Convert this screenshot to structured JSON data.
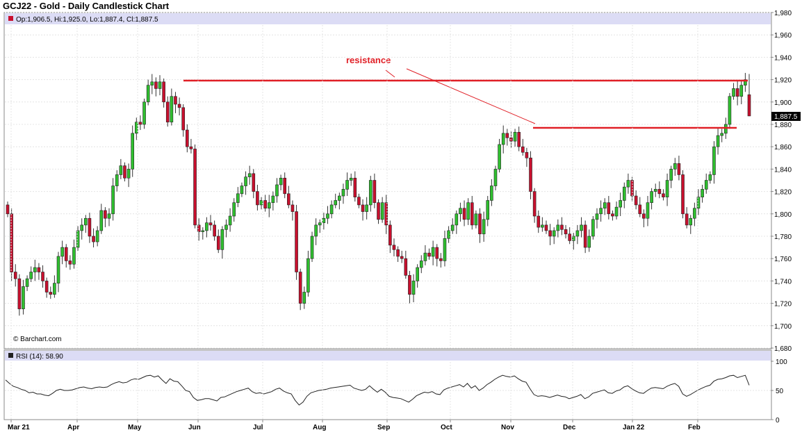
{
  "title": "GCJ22 - Gold - Daily Candlestick Chart",
  "price_info": "Op:1,906.5, Hi:1,925.0, Lo:1,887.4, Cl:1,887.5",
  "last_price_label": "1,887.5",
  "watermark": "© Barchart.com",
  "rsi_label": "RSI (14): 58.90",
  "annotation": "resistance",
  "colors": {
    "up": "#2fbf2f",
    "down": "#c8102e",
    "resistance": "#e01f26",
    "header_band": "#dcdcf5",
    "rsi_line": "#222222"
  },
  "chart_data": [
    {
      "type": "candlestick",
      "title": "GCJ22 - Gold - Daily Candlestick Chart",
      "ylim": [
        1680,
        1980
      ],
      "y_ticks": [
        "1,680",
        "1,700",
        "1,720",
        "1,740",
        "1,760",
        "1,780",
        "1,800",
        "1,820",
        "1,840",
        "1,860",
        "1,880",
        "1,900",
        "1,920",
        "1,940",
        "1,960",
        "1,980"
      ],
      "x_tick_labels": [
        "Mar 21",
        "Apr",
        "May",
        "Jun",
        "Jul",
        "Aug",
        "Sep",
        "Oct",
        "Nov",
        "Dec",
        "Jan 22",
        "Feb"
      ],
      "grid": true,
      "resistance_levels": [
        1920,
        1877
      ],
      "last_bar": {
        "open": 1906.5,
        "high": 1925.0,
        "low": 1887.4,
        "close": 1887.5
      },
      "closes": [
        1800,
        1748,
        1742,
        1715,
        1735,
        1742,
        1748,
        1752,
        1748,
        1740,
        1730,
        1728,
        1738,
        1762,
        1770,
        1758,
        1755,
        1770,
        1785,
        1790,
        1796,
        1780,
        1775,
        1785,
        1803,
        1796,
        1800,
        1825,
        1835,
        1843,
        1832,
        1840,
        1872,
        1882,
        1880,
        1900,
        1915,
        1918,
        1912,
        1918,
        1900,
        1882,
        1905,
        1898,
        1895,
        1875,
        1860,
        1858,
        1790,
        1784,
        1785,
        1792,
        1790,
        1780,
        1768,
        1786,
        1790,
        1798,
        1810,
        1818,
        1825,
        1833,
        1836,
        1820,
        1808,
        1812,
        1805,
        1810,
        1816,
        1826,
        1832,
        1818,
        1808,
        1802,
        1748,
        1720,
        1730,
        1760,
        1780,
        1790,
        1792,
        1796,
        1800,
        1808,
        1812,
        1816,
        1822,
        1830,
        1832,
        1815,
        1808,
        1802,
        1808,
        1830,
        1810,
        1795,
        1810,
        1790,
        1772,
        1768,
        1762,
        1760,
        1745,
        1728,
        1740,
        1752,
        1758,
        1765,
        1762,
        1770,
        1760,
        1758,
        1778,
        1785,
        1790,
        1800,
        1805,
        1795,
        1810,
        1790,
        1800,
        1782,
        1795,
        1812,
        1825,
        1840,
        1862,
        1872,
        1868,
        1865,
        1873,
        1860,
        1855,
        1850,
        1820,
        1798,
        1788,
        1790,
        1785,
        1780,
        1785,
        1790,
        1786,
        1782,
        1776,
        1780,
        1785,
        1790,
        1770,
        1780,
        1795,
        1800,
        1805,
        1810,
        1800,
        1798,
        1806,
        1812,
        1824,
        1830,
        1816,
        1808,
        1800,
        1796,
        1810,
        1820,
        1822,
        1818,
        1815,
        1830,
        1840,
        1845,
        1835,
        1800,
        1790,
        1796,
        1805,
        1815,
        1822,
        1830,
        1835,
        1860,
        1870,
        1872,
        1880,
        1905,
        1912,
        1905,
        1915,
        1920,
        1887.5
      ],
      "rsi_ylim": [
        0,
        100
      ],
      "rsi_ticks": [
        "0",
        "50",
        "100"
      ],
      "rsi": [
        68,
        62,
        57,
        55,
        52,
        50,
        46,
        47,
        44,
        44,
        42,
        41,
        45,
        50,
        52,
        50,
        50,
        51,
        53,
        55,
        56,
        54,
        53,
        55,
        56,
        55,
        56,
        60,
        63,
        65,
        63,
        64,
        68,
        70,
        69,
        72,
        75,
        76,
        73,
        75,
        68,
        62,
        70,
        66,
        65,
        58,
        50,
        48,
        38,
        33,
        34,
        36,
        36,
        34,
        32,
        38,
        39,
        42,
        45,
        48,
        50,
        52,
        54,
        48,
        45,
        46,
        44,
        46,
        48,
        52,
        54,
        49,
        46,
        44,
        33,
        25,
        30,
        40,
        46,
        48,
        50,
        51,
        52,
        54,
        55,
        56,
        57,
        58,
        59,
        54,
        52,
        50,
        52,
        58,
        52,
        47,
        52,
        47,
        40,
        38,
        37,
        36,
        33,
        30,
        35,
        41,
        44,
        47,
        46,
        48,
        44,
        43,
        51,
        54,
        56,
        58,
        60,
        56,
        62,
        54,
        58,
        50,
        54,
        60,
        64,
        69,
        73,
        76,
        74,
        73,
        75,
        70,
        66,
        64,
        53,
        43,
        40,
        41,
        40,
        38,
        40,
        42,
        40,
        39,
        36,
        38,
        40,
        43,
        36,
        39,
        45,
        47,
        49,
        51,
        46,
        45,
        49,
        51,
        56,
        58,
        53,
        49,
        46,
        45,
        50,
        54,
        55,
        54,
        53,
        57,
        60,
        62,
        57,
        44,
        40,
        43,
        47,
        51,
        54,
        57,
        59,
        66,
        69,
        70,
        72,
        75,
        76,
        72,
        74,
        76,
        58.9
      ]
    }
  ]
}
